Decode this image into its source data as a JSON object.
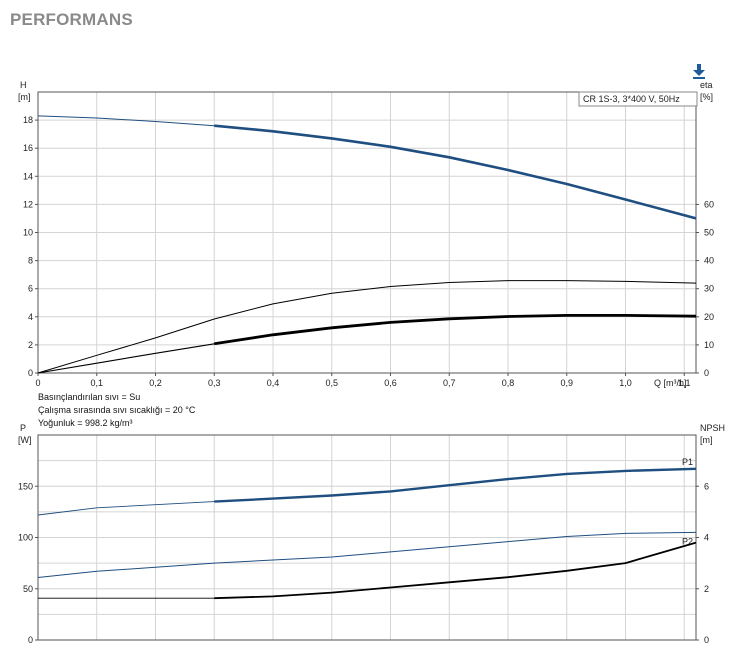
{
  "page": {
    "title": "PERFORMANS"
  },
  "toolbar": {
    "download_icon": "download-icon",
    "accent": "#1f5b9a"
  },
  "notes": {
    "line1": "Basınçlandırılan sıvı = Su",
    "line2": "Çalışma sırasında sıvı sıcaklığı = 20 °C",
    "line3": "Yoğunluk = 998.2 kg/m³"
  },
  "chart_data": [
    {
      "type": "line",
      "title": "",
      "legend_label": "CR 1S-3, 3*400 V, 50Hz",
      "legend_position": "top-right",
      "grid": true,
      "xlabel": "Q [m³/h]",
      "x_ticks": [
        "0",
        "0,1",
        "0,2",
        "0,3",
        "0,4",
        "0,5",
        "0,6",
        "0,7",
        "0,8",
        "0,9",
        "1,0",
        "1,1"
      ],
      "xlim": [
        0,
        1.12
      ],
      "ylabel_left": [
        "H",
        "[m]"
      ],
      "ylim_left": [
        0,
        20
      ],
      "y_ticks_left": [
        "0",
        "2",
        "4",
        "6",
        "8",
        "10",
        "12",
        "14",
        "16",
        "18"
      ],
      "ylabel_right": [
        "eta",
        "[%]"
      ],
      "ylim_right": [
        0,
        100
      ],
      "y_ticks_right": [
        "0",
        "10",
        "20",
        "30",
        "40",
        "50",
        "60"
      ],
      "series": [
        {
          "axis": "left",
          "color": "#1f4e80",
          "width": 2.0,
          "dashed_from": 0.3,
          "points": [
            [
              0,
              18.3
            ],
            [
              0.1,
              18.15
            ],
            [
              0.2,
              17.9
            ],
            [
              0.3,
              17.6
            ],
            [
              0.4,
              17.2
            ],
            [
              0.5,
              16.7
            ],
            [
              0.6,
              16.1
            ],
            [
              0.7,
              15.35
            ],
            [
              0.8,
              14.45
            ],
            [
              0.9,
              13.45
            ],
            [
              1.0,
              12.35
            ],
            [
              1.12,
              11.0
            ]
          ]
        },
        {
          "axis": "right",
          "color": "#000000",
          "width": 1.0,
          "points": [
            [
              0,
              0
            ],
            [
              0.1,
              6.3
            ],
            [
              0.2,
              12.5
            ],
            [
              0.3,
              19.2
            ],
            [
              0.4,
              24.6
            ],
            [
              0.5,
              28.4
            ],
            [
              0.6,
              30.8
            ],
            [
              0.7,
              32.2
            ],
            [
              0.8,
              32.9
            ],
            [
              0.9,
              32.9
            ],
            [
              1.0,
              32.6
            ],
            [
              1.12,
              32.0
            ]
          ]
        },
        {
          "axis": "right",
          "color": "#000000",
          "width": 2.2,
          "dashed_from": 0.3,
          "points": [
            [
              0,
              0
            ],
            [
              0.1,
              3.5
            ],
            [
              0.2,
              7.0
            ],
            [
              0.3,
              10.4
            ],
            [
              0.4,
              13.6
            ],
            [
              0.5,
              16.1
            ],
            [
              0.6,
              18.0
            ],
            [
              0.7,
              19.3
            ],
            [
              0.8,
              20.1
            ],
            [
              0.9,
              20.5
            ],
            [
              1.0,
              20.5
            ],
            [
              1.12,
              20.2
            ]
          ]
        }
      ]
    },
    {
      "type": "line",
      "title": "",
      "grid": true,
      "xlim": [
        0,
        1.12
      ],
      "ylabel_left": [
        "P",
        "[W]"
      ],
      "ylim_left": [
        0,
        200
      ],
      "y_ticks_left": [
        "0",
        "50",
        "100",
        "150"
      ],
      "ylabel_right": [
        "NPSH",
        "[m]"
      ],
      "ylim_right": [
        0,
        8
      ],
      "y_ticks_right": [
        "0",
        "2",
        "4",
        "6"
      ],
      "series": [
        {
          "name": "P1",
          "axis": "left",
          "color": "#1f4e80",
          "width": 1.8,
          "dashed_from": 0.3,
          "points": [
            [
              0,
              122
            ],
            [
              0.1,
              129
            ],
            [
              0.2,
              132
            ],
            [
              0.3,
              135
            ],
            [
              0.4,
              138
            ],
            [
              0.5,
              141
            ],
            [
              0.6,
              145
            ],
            [
              0.7,
              151
            ],
            [
              0.8,
              157
            ],
            [
              0.9,
              162
            ],
            [
              1.0,
              165
            ],
            [
              1.12,
              167
            ]
          ]
        },
        {
          "name": "P2",
          "axis": "left",
          "color": "#1f4e80",
          "width": 1.0,
          "points": [
            [
              0,
              61
            ],
            [
              0.1,
              67
            ],
            [
              0.2,
              71
            ],
            [
              0.3,
              75
            ],
            [
              0.4,
              78
            ],
            [
              0.5,
              81
            ],
            [
              0.6,
              86
            ],
            [
              0.7,
              91
            ],
            [
              0.8,
              96
            ],
            [
              0.9,
              101
            ],
            [
              1.0,
              104
            ],
            [
              1.12,
              105
            ]
          ]
        },
        {
          "axis": "right",
          "color": "#000000",
          "width": 1.2,
          "dashed_from": 0.3,
          "thick_from": 0.3,
          "points": [
            [
              0,
              1.63
            ],
            [
              0.1,
              1.63
            ],
            [
              0.2,
              1.63
            ],
            [
              0.3,
              1.63
            ],
            [
              0.4,
              1.7
            ],
            [
              0.5,
              1.85
            ],
            [
              0.6,
              2.05
            ],
            [
              0.7,
              2.25
            ],
            [
              0.8,
              2.45
            ],
            [
              0.9,
              2.7
            ],
            [
              1.0,
              3.0
            ],
            [
              1.12,
              3.8
            ]
          ]
        }
      ]
    }
  ]
}
